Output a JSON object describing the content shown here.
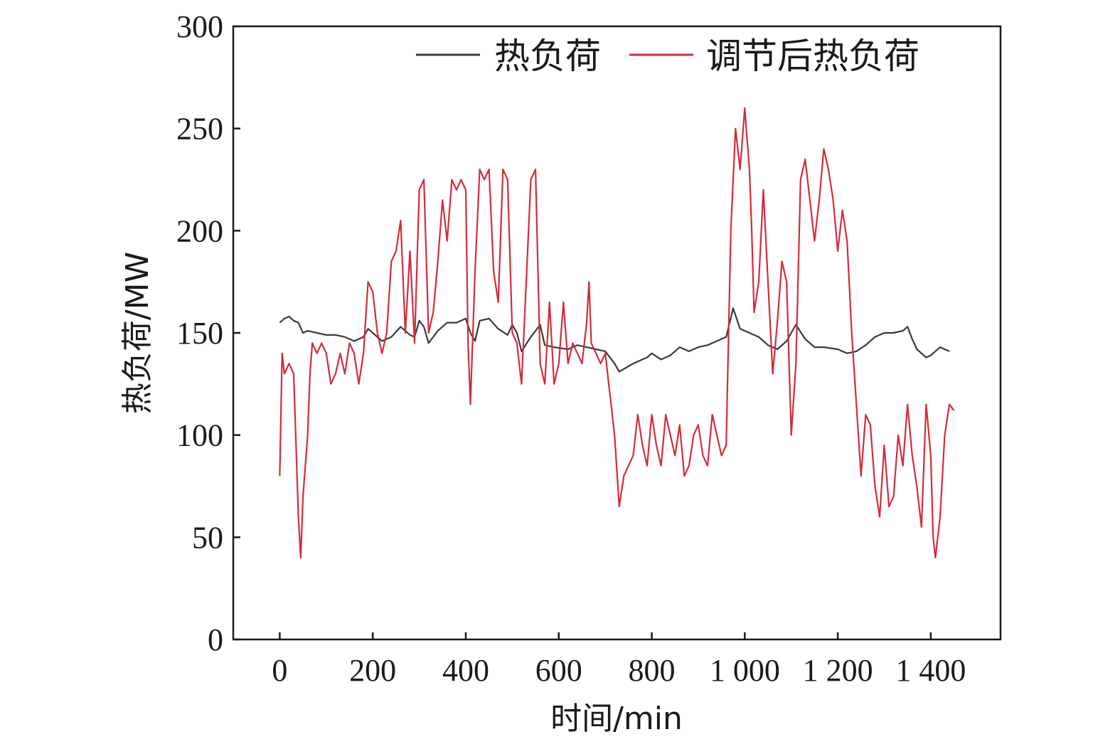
{
  "chart_data": {
    "type": "line",
    "xlabel": "时间/min",
    "ylabel": "热负荷/MW",
    "xlim": [
      -100,
      1550
    ],
    "ylim": [
      0,
      300
    ],
    "x_ticks": [
      0,
      200,
      400,
      600,
      800,
      1000,
      1200,
      1400
    ],
    "x_tick_labels": [
      "0",
      "200",
      "400",
      "600",
      "800",
      "1 000",
      "1 200",
      "1 400"
    ],
    "y_ticks": [
      0,
      50,
      100,
      150,
      200,
      250,
      300
    ],
    "y_tick_labels": [
      "0",
      "50",
      "100",
      "150",
      "200",
      "250",
      "300"
    ],
    "legend_position": "top-right",
    "series": [
      {
        "name": "热负荷",
        "color": "#3a3a3a",
        "points": [
          [
            0,
            155
          ],
          [
            10,
            157
          ],
          [
            20,
            158
          ],
          [
            30,
            156
          ],
          [
            40,
            155
          ],
          [
            50,
            150
          ],
          [
            60,
            151
          ],
          [
            80,
            150
          ],
          [
            100,
            149
          ],
          [
            120,
            149
          ],
          [
            140,
            148
          ],
          [
            160,
            146
          ],
          [
            180,
            148
          ],
          [
            190,
            152
          ],
          [
            200,
            150
          ],
          [
            220,
            146
          ],
          [
            240,
            148
          ],
          [
            260,
            153
          ],
          [
            280,
            149
          ],
          [
            290,
            148
          ],
          [
            300,
            156
          ],
          [
            310,
            153
          ],
          [
            320,
            145
          ],
          [
            340,
            151
          ],
          [
            360,
            155
          ],
          [
            380,
            155
          ],
          [
            400,
            157
          ],
          [
            410,
            150
          ],
          [
            420,
            146
          ],
          [
            430,
            156
          ],
          [
            450,
            157
          ],
          [
            470,
            152
          ],
          [
            490,
            149
          ],
          [
            500,
            154
          ],
          [
            510,
            150
          ],
          [
            520,
            141
          ],
          [
            540,
            148
          ],
          [
            560,
            154
          ],
          [
            570,
            144
          ],
          [
            590,
            143
          ],
          [
            620,
            142
          ],
          [
            640,
            144
          ],
          [
            660,
            143
          ],
          [
            680,
            142
          ],
          [
            700,
            141
          ],
          [
            720,
            135
          ],
          [
            730,
            131
          ],
          [
            760,
            135
          ],
          [
            790,
            138
          ],
          [
            800,
            140
          ],
          [
            820,
            137
          ],
          [
            840,
            139
          ],
          [
            860,
            143
          ],
          [
            880,
            141
          ],
          [
            900,
            143
          ],
          [
            920,
            144
          ],
          [
            940,
            146
          ],
          [
            960,
            148
          ],
          [
            975,
            162
          ],
          [
            990,
            152
          ],
          [
            1010,
            150
          ],
          [
            1030,
            148
          ],
          [
            1050,
            144
          ],
          [
            1070,
            142
          ],
          [
            1090,
            146
          ],
          [
            1100,
            150
          ],
          [
            1110,
            154
          ],
          [
            1130,
            147
          ],
          [
            1150,
            143
          ],
          [
            1170,
            143
          ],
          [
            1200,
            142
          ],
          [
            1210,
            141
          ],
          [
            1220,
            140
          ],
          [
            1240,
            141
          ],
          [
            1260,
            144
          ],
          [
            1280,
            148
          ],
          [
            1300,
            150
          ],
          [
            1320,
            150
          ],
          [
            1340,
            151
          ],
          [
            1350,
            153
          ],
          [
            1360,
            147
          ],
          [
            1370,
            142
          ],
          [
            1390,
            138
          ],
          [
            1400,
            139
          ],
          [
            1420,
            143
          ],
          [
            1440,
            141
          ]
        ]
      },
      {
        "name": "调节后热负荷",
        "color": "#d42b3c",
        "points": [
          [
            0,
            80
          ],
          [
            5,
            140
          ],
          [
            10,
            130
          ],
          [
            20,
            135
          ],
          [
            30,
            130
          ],
          [
            40,
            60
          ],
          [
            45,
            40
          ],
          [
            50,
            70
          ],
          [
            60,
            100
          ],
          [
            65,
            130
          ],
          [
            70,
            145
          ],
          [
            80,
            140
          ],
          [
            90,
            145
          ],
          [
            100,
            140
          ],
          [
            110,
            125
          ],
          [
            120,
            130
          ],
          [
            130,
            140
          ],
          [
            140,
            130
          ],
          [
            150,
            145
          ],
          [
            160,
            140
          ],
          [
            170,
            125
          ],
          [
            180,
            140
          ],
          [
            190,
            175
          ],
          [
            200,
            170
          ],
          [
            210,
            150
          ],
          [
            220,
            140
          ],
          [
            230,
            150
          ],
          [
            240,
            185
          ],
          [
            250,
            190
          ],
          [
            260,
            205
          ],
          [
            270,
            150
          ],
          [
            280,
            190
          ],
          [
            290,
            145
          ],
          [
            300,
            220
          ],
          [
            310,
            225
          ],
          [
            320,
            150
          ],
          [
            330,
            160
          ],
          [
            340,
            185
          ],
          [
            350,
            215
          ],
          [
            360,
            195
          ],
          [
            370,
            225
          ],
          [
            380,
            220
          ],
          [
            390,
            225
          ],
          [
            400,
            220
          ],
          [
            405,
            145
          ],
          [
            410,
            115
          ],
          [
            420,
            180
          ],
          [
            430,
            230
          ],
          [
            440,
            225
          ],
          [
            450,
            230
          ],
          [
            460,
            180
          ],
          [
            470,
            165
          ],
          [
            480,
            230
          ],
          [
            490,
            225
          ],
          [
            500,
            150
          ],
          [
            510,
            145
          ],
          [
            520,
            125
          ],
          [
            530,
            175
          ],
          [
            540,
            225
          ],
          [
            550,
            230
          ],
          [
            560,
            135
          ],
          [
            570,
            125
          ],
          [
            580,
            165
          ],
          [
            590,
            125
          ],
          [
            600,
            135
          ],
          [
            610,
            165
          ],
          [
            620,
            135
          ],
          [
            630,
            145
          ],
          [
            640,
            140
          ],
          [
            650,
            135
          ],
          [
            660,
            155
          ],
          [
            665,
            175
          ],
          [
            670,
            145
          ],
          [
            680,
            140
          ],
          [
            690,
            135
          ],
          [
            700,
            140
          ],
          [
            710,
            120
          ],
          [
            720,
            100
          ],
          [
            730,
            65
          ],
          [
            740,
            80
          ],
          [
            750,
            85
          ],
          [
            760,
            90
          ],
          [
            770,
            110
          ],
          [
            780,
            95
          ],
          [
            790,
            85
          ],
          [
            800,
            110
          ],
          [
            810,
            95
          ],
          [
            820,
            85
          ],
          [
            830,
            110
          ],
          [
            840,
            100
          ],
          [
            850,
            90
          ],
          [
            860,
            105
          ],
          [
            870,
            80
          ],
          [
            880,
            85
          ],
          [
            890,
            100
          ],
          [
            900,
            105
          ],
          [
            910,
            90
          ],
          [
            920,
            85
          ],
          [
            930,
            110
          ],
          [
            940,
            100
          ],
          [
            950,
            90
          ],
          [
            960,
            95
          ],
          [
            970,
            200
          ],
          [
            980,
            250
          ],
          [
            990,
            230
          ],
          [
            1000,
            260
          ],
          [
            1010,
            230
          ],
          [
            1015,
            200
          ],
          [
            1020,
            160
          ],
          [
            1030,
            175
          ],
          [
            1040,
            220
          ],
          [
            1050,
            175
          ],
          [
            1060,
            130
          ],
          [
            1070,
            155
          ],
          [
            1080,
            185
          ],
          [
            1090,
            175
          ],
          [
            1100,
            100
          ],
          [
            1110,
            135
          ],
          [
            1120,
            225
          ],
          [
            1130,
            235
          ],
          [
            1140,
            215
          ],
          [
            1150,
            195
          ],
          [
            1160,
            215
          ],
          [
            1170,
            240
          ],
          [
            1180,
            230
          ],
          [
            1190,
            215
          ],
          [
            1200,
            190
          ],
          [
            1210,
            210
          ],
          [
            1220,
            195
          ],
          [
            1230,
            150
          ],
          [
            1240,
            115
          ],
          [
            1250,
            80
          ],
          [
            1260,
            110
          ],
          [
            1270,
            105
          ],
          [
            1280,
            75
          ],
          [
            1290,
            60
          ],
          [
            1300,
            95
          ],
          [
            1310,
            65
          ],
          [
            1320,
            70
          ],
          [
            1330,
            100
          ],
          [
            1340,
            85
          ],
          [
            1350,
            115
          ],
          [
            1360,
            90
          ],
          [
            1370,
            75
          ],
          [
            1380,
            55
          ],
          [
            1390,
            115
          ],
          [
            1400,
            90
          ],
          [
            1405,
            50
          ],
          [
            1410,
            40
          ],
          [
            1420,
            60
          ],
          [
            1430,
            100
          ],
          [
            1440,
            115
          ],
          [
            1450,
            112
          ]
        ]
      }
    ]
  }
}
